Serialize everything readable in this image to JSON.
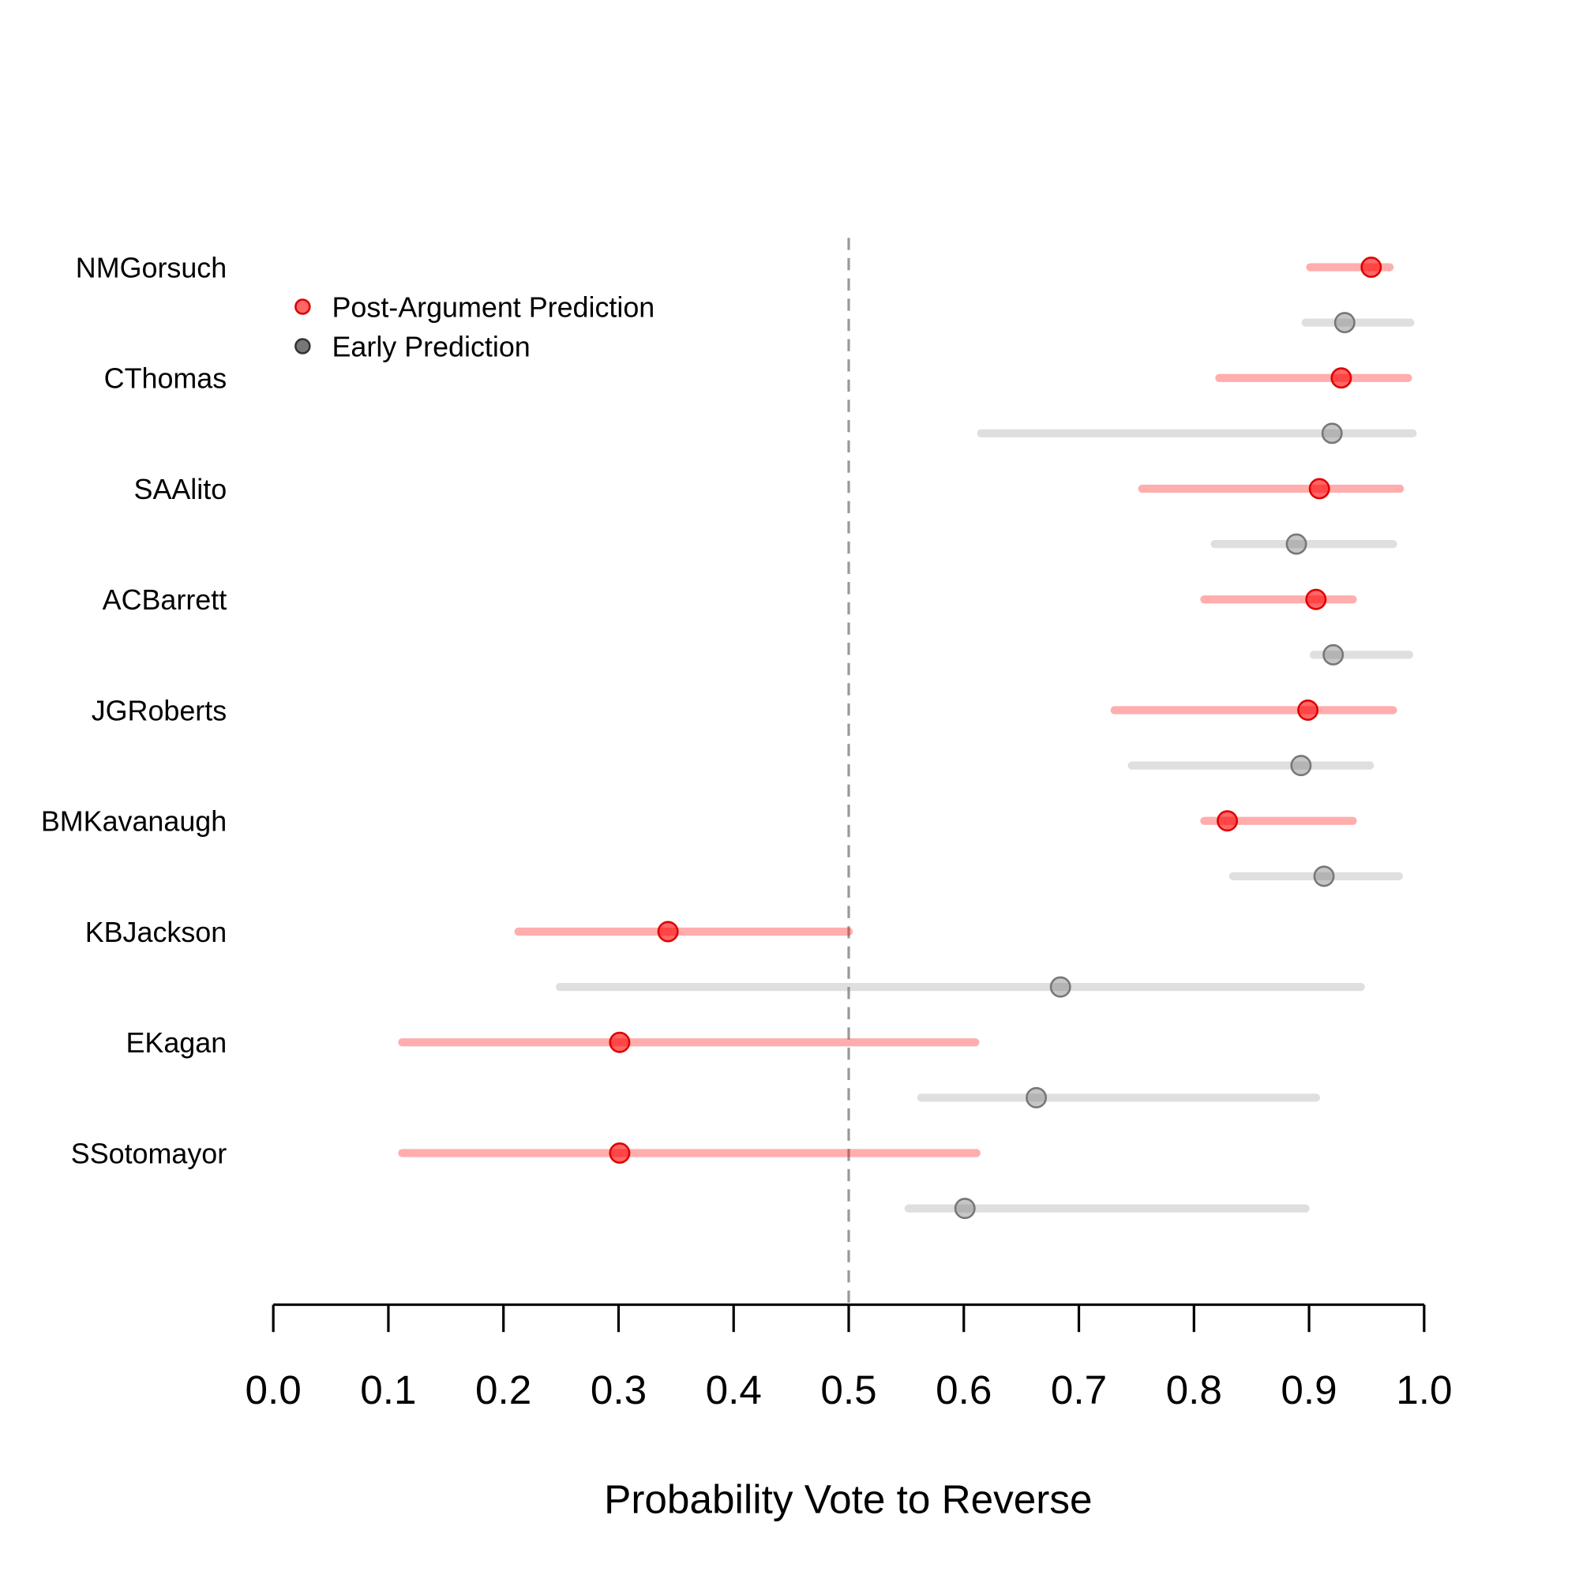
{
  "chart_data": {
    "type": "dot-interval",
    "xlabel": "Probability Vote to Reverse",
    "xlim": [
      0,
      1
    ],
    "xticks": [
      "0.0",
      "0.1",
      "0.2",
      "0.3",
      "0.4",
      "0.5",
      "0.6",
      "0.7",
      "0.8",
      "0.9",
      "1.0"
    ],
    "reference_line": 0.5,
    "legend": {
      "placement": "top-left",
      "entries": [
        "Post-Argument Prediction",
        "Early Prediction"
      ]
    },
    "colors": {
      "post": "#ff0000",
      "early": "#808080"
    },
    "justices": [
      {
        "name": "NMGorsuch",
        "post": {
          "value": 0.954,
          "low": 0.901,
          "high": 0.97
        },
        "early": {
          "value": 0.931,
          "low": 0.897,
          "high": 0.988
        }
      },
      {
        "name": "CThomas",
        "post": {
          "value": 0.928,
          "low": 0.822,
          "high": 0.986
        },
        "early": {
          "value": 0.92,
          "low": 0.615,
          "high": 0.99
        }
      },
      {
        "name": "SAAlito",
        "post": {
          "value": 0.909,
          "low": 0.755,
          "high": 0.979
        },
        "early": {
          "value": 0.889,
          "low": 0.818,
          "high": 0.973
        }
      },
      {
        "name": "ACBarrett",
        "post": {
          "value": 0.906,
          "low": 0.809,
          "high": 0.938
        },
        "early": {
          "value": 0.921,
          "low": 0.904,
          "high": 0.987
        }
      },
      {
        "name": "JGRoberts",
        "post": {
          "value": 0.899,
          "low": 0.731,
          "high": 0.973
        },
        "early": {
          "value": 0.893,
          "low": 0.746,
          "high": 0.953
        }
      },
      {
        "name": "BMKavanaugh",
        "post": {
          "value": 0.829,
          "low": 0.809,
          "high": 0.938
        },
        "early": {
          "value": 0.913,
          "low": 0.834,
          "high": 0.978
        }
      },
      {
        "name": "KBJackson",
        "post": {
          "value": 0.343,
          "low": 0.213,
          "high": 0.5
        },
        "early": {
          "value": 0.684,
          "low": 0.249,
          "high": 0.945
        }
      },
      {
        "name": "EKagan",
        "post": {
          "value": 0.301,
          "low": 0.112,
          "high": 0.61
        },
        "early": {
          "value": 0.663,
          "low": 0.563,
          "high": 0.906
        }
      },
      {
        "name": "SSotomayor",
        "post": {
          "value": 0.301,
          "low": 0.112,
          "high": 0.611
        },
        "early": {
          "value": 0.601,
          "low": 0.552,
          "high": 0.897
        }
      }
    ]
  }
}
